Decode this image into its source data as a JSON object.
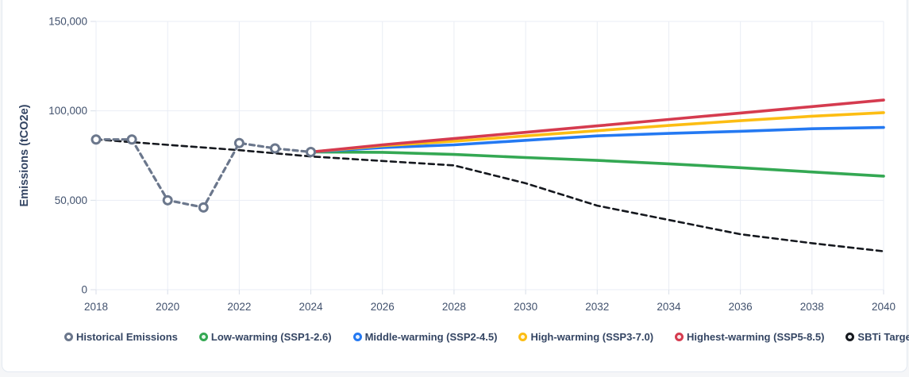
{
  "page": {
    "background": "#f5f6f8",
    "card_background": "#ffffff",
    "card_border": "#e3e9f1",
    "grid_color": "#e9edf4",
    "tick_color": "#d8dee8",
    "tick_text_color": "#42526e",
    "axis_title_color": "#344563"
  },
  "chart_data": {
    "type": "line",
    "title": "",
    "xlabel": "",
    "ylabel": "Emissions (tCO2e)",
    "xlim": [
      2018,
      2040
    ],
    "ylim": [
      0,
      150000
    ],
    "grid": true,
    "legend_position": "bottom",
    "x_ticks": [
      {
        "v": 2018,
        "label": "2018"
      },
      {
        "v": 2020,
        "label": "2020"
      },
      {
        "v": 2022,
        "label": "2022"
      },
      {
        "v": 2024,
        "label": "2024"
      },
      {
        "v": 2026,
        "label": "2026"
      },
      {
        "v": 2028,
        "label": "2028"
      },
      {
        "v": 2030,
        "label": "2030"
      },
      {
        "v": 2032,
        "label": "2032"
      },
      {
        "v": 2034,
        "label": "2034"
      },
      {
        "v": 2036,
        "label": "2036"
      },
      {
        "v": 2038,
        "label": "2038"
      },
      {
        "v": 2040,
        "label": "2040"
      }
    ],
    "y_ticks": [
      {
        "v": 0,
        "label": "0"
      },
      {
        "v": 50000,
        "label": "50,000"
      },
      {
        "v": 100000,
        "label": "100,000"
      },
      {
        "v": 150000,
        "label": "150,000"
      }
    ],
    "series": [
      {
        "key": "historical-emissions",
        "name": "Historical Emissions",
        "color": "#6b778c",
        "legend_fill": "#ffffff",
        "dash": "6 5",
        "width": 3.2,
        "marker": "ring",
        "marker_radius": 5,
        "points": [
          [
            2018,
            84000
          ],
          [
            2019,
            84000
          ],
          [
            2020,
            50000
          ],
          [
            2021,
            46000
          ],
          [
            2022,
            82000
          ],
          [
            2023,
            79000
          ],
          [
            2024,
            77000
          ]
        ]
      },
      {
        "key": "low-warming-ssp1-2-6",
        "name": "Low-warming (SSP1-2.6)",
        "color": "#34a853",
        "legend_fill": "#e9f7ee",
        "dash": null,
        "width": 3.6,
        "marker": null,
        "points": [
          [
            2024,
            77000
          ],
          [
            2026,
            76800
          ],
          [
            2028,
            75600
          ],
          [
            2030,
            73900
          ],
          [
            2032,
            72300
          ],
          [
            2034,
            70400
          ],
          [
            2036,
            68200
          ],
          [
            2038,
            65800
          ],
          [
            2040,
            63500
          ]
        ]
      },
      {
        "key": "middle-warming-ssp2-4-5",
        "name": "Middle-warming (SSP2-4.5)",
        "color": "#2479f2",
        "legend_fill": "#e8f1fe",
        "dash": null,
        "width": 3.6,
        "marker": null,
        "points": [
          [
            2024,
            77000
          ],
          [
            2026,
            79500
          ],
          [
            2028,
            81000
          ],
          [
            2030,
            83500
          ],
          [
            2032,
            86000
          ],
          [
            2034,
            87400
          ],
          [
            2036,
            88600
          ],
          [
            2038,
            90000
          ],
          [
            2040,
            90700
          ]
        ]
      },
      {
        "key": "high-warming-ssp3-7-0",
        "name": "High-warming (SSP3-7.0)",
        "color": "#fcbd13",
        "legend_fill": "#fff7e0",
        "dash": null,
        "width": 3.6,
        "marker": null,
        "points": [
          [
            2024,
            77000
          ],
          [
            2026,
            80500
          ],
          [
            2028,
            83000
          ],
          [
            2030,
            86000
          ],
          [
            2032,
            88900
          ],
          [
            2034,
            91800
          ],
          [
            2036,
            94500
          ],
          [
            2038,
            97000
          ],
          [
            2040,
            99000
          ]
        ]
      },
      {
        "key": "highest-warming-ssp5-8-5",
        "name": "Highest-warming (SSP5-8.5)",
        "color": "#d53b4f",
        "legend_fill": "#fbe9ec",
        "dash": null,
        "width": 3.6,
        "marker": null,
        "points": [
          [
            2024,
            77000
          ],
          [
            2026,
            81000
          ],
          [
            2028,
            84500
          ],
          [
            2030,
            88000
          ],
          [
            2032,
            91600
          ],
          [
            2034,
            95200
          ],
          [
            2036,
            98800
          ],
          [
            2038,
            102400
          ],
          [
            2040,
            106000
          ]
        ]
      },
      {
        "key": "sbti-target",
        "name": "SBTi Target",
        "color": "#15181e",
        "legend_fill": "#eceff1",
        "dash": "7 5",
        "width": 2.6,
        "marker": null,
        "points": [
          [
            2018,
            84000
          ],
          [
            2020,
            81000
          ],
          [
            2022,
            78000
          ],
          [
            2024,
            74500
          ],
          [
            2026,
            72000
          ],
          [
            2028,
            69500
          ],
          [
            2030,
            59500
          ],
          [
            2032,
            47000
          ],
          [
            2034,
            39000
          ],
          [
            2036,
            31000
          ],
          [
            2038,
            26000
          ],
          [
            2040,
            21500
          ]
        ]
      }
    ],
    "draw_order": [
      "sbti-target",
      "low-warming-ssp1-2-6",
      "middle-warming-ssp2-4-5",
      "high-warming-ssp3-7-0",
      "highest-warming-ssp5-8-5",
      "historical-emissions"
    ]
  }
}
